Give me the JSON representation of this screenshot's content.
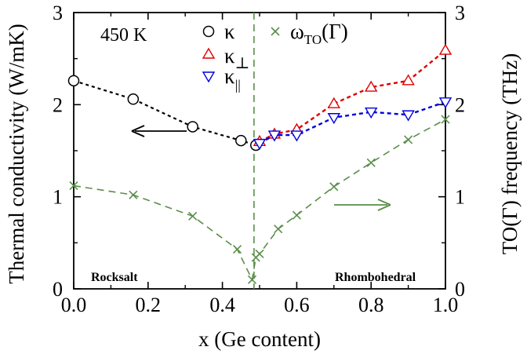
{
  "chart_data": {
    "type": "line",
    "annotation": "450 K",
    "xlabel": "x (Ge content)",
    "ylabel_left": "Thermal conductivity (W/mK)",
    "ylabel_right": "TO(Γ) frequency (THz)",
    "xlim": [
      0.0,
      1.0
    ],
    "ylim_left": [
      0,
      3
    ],
    "ylim_right": [
      0,
      3
    ],
    "x_ticks": [
      "0.0",
      "0.2",
      "0.4",
      "0.6",
      "0.8",
      "1.0"
    ],
    "y_ticks_left": [
      "0",
      "1",
      "2",
      "3"
    ],
    "y_ticks_right": [
      "0",
      "1",
      "2",
      "3"
    ],
    "regions": {
      "left": "Rocksalt",
      "right": "Rhombohedral",
      "boundary_x": 0.485
    },
    "colors": {
      "kappa": "#000000",
      "kappa_perp": "#e00000",
      "kappa_par": "#0000dd",
      "omega": "#5a8e4a"
    },
    "series": [
      {
        "name": "κ",
        "axis": "left",
        "marker": "circle",
        "x": [
          0.0,
          0.16,
          0.32,
          0.45,
          0.49
        ],
        "y": [
          2.26,
          2.06,
          1.76,
          1.61,
          1.56
        ]
      },
      {
        "name": "κ⊥",
        "axis": "left",
        "marker": "triangle-up",
        "x": [
          0.5,
          0.54,
          0.6,
          0.7,
          0.8,
          0.9,
          1.0
        ],
        "y": [
          1.6,
          1.68,
          1.73,
          2.01,
          2.19,
          2.26,
          2.59
        ]
      },
      {
        "name": "κ∥",
        "axis": "left",
        "marker": "triangle-down",
        "x": [
          0.5,
          0.54,
          0.6,
          0.7,
          0.8,
          0.9,
          1.0
        ],
        "y": [
          1.58,
          1.67,
          1.67,
          1.86,
          1.92,
          1.89,
          2.03
        ]
      },
      {
        "name": "ωTO(Γ)",
        "axis": "right",
        "marker": "x",
        "x": [
          0.0,
          0.16,
          0.32,
          0.44,
          0.48,
          0.49,
          0.5,
          0.55,
          0.6,
          0.7,
          0.8,
          0.9,
          1.0
        ],
        "y": [
          1.12,
          1.02,
          0.79,
          0.43,
          0.1,
          0.34,
          0.38,
          0.65,
          0.8,
          1.11,
          1.37,
          1.62,
          1.84
        ]
      }
    ],
    "legend": {
      "kappa": "κ",
      "kappa_perp_base": "κ",
      "kappa_perp_sub": "⊥",
      "kappa_par_base": "κ",
      "kappa_par_sub": "||",
      "omega_base": "ω",
      "omega_sub": "TO",
      "omega_suffix": "(Γ)"
    }
  }
}
